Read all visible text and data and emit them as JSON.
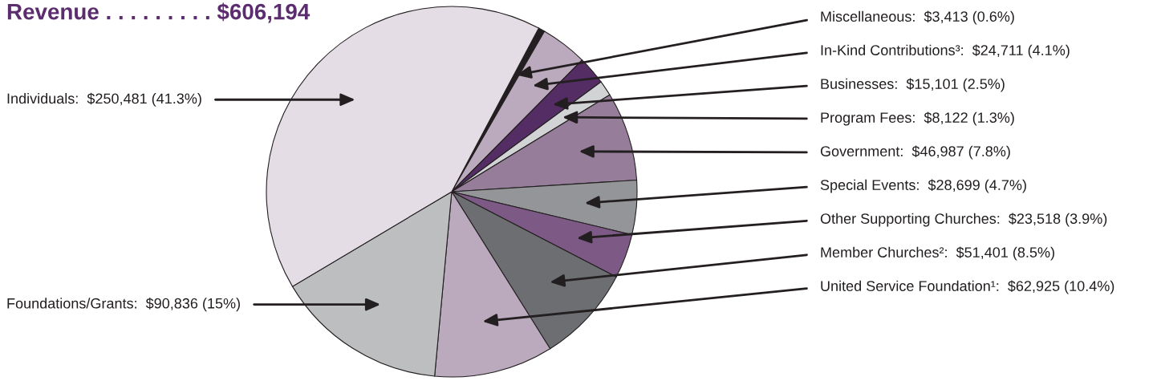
{
  "chart_data": {
    "type": "pie",
    "title": "Revenue . . . . . . . . . $606,194",
    "categories": [
      "Miscellaneous",
      "In-Kind Contributions³",
      "Businesses",
      "Program Fees",
      "Government",
      "Special Events",
      "Other Supporting Churches",
      "Member Churches²",
      "United Service Foundation¹",
      "Foundations/Grants",
      "Individuals"
    ],
    "values": [
      3413,
      24711,
      15101,
      8122,
      46987,
      28699,
      23518,
      51401,
      62925,
      90836,
      250481
    ],
    "value_labels": [
      "$3,413 (0.6%)",
      "$24,711 (4.1%)",
      "$15,101 (2.5%)",
      "$8,122 (1.3%)",
      "$46,987 (7.8%)",
      "$28,699 (4.7%)",
      "$23,518 (3.9%)",
      "$51,401 (8.5%)",
      "$62,925 (10.4%)",
      "$90,836 (15%)",
      "$250,481 (41.3%)"
    ],
    "colors": [
      "#231f20",
      "#bba9bd",
      "#532d63",
      "#d1d3d4",
      "#967d99",
      "#939598",
      "#7d5a85",
      "#6d6e71",
      "#bba9bd",
      "#bcbec0",
      "#e5dde5"
    ]
  }
}
